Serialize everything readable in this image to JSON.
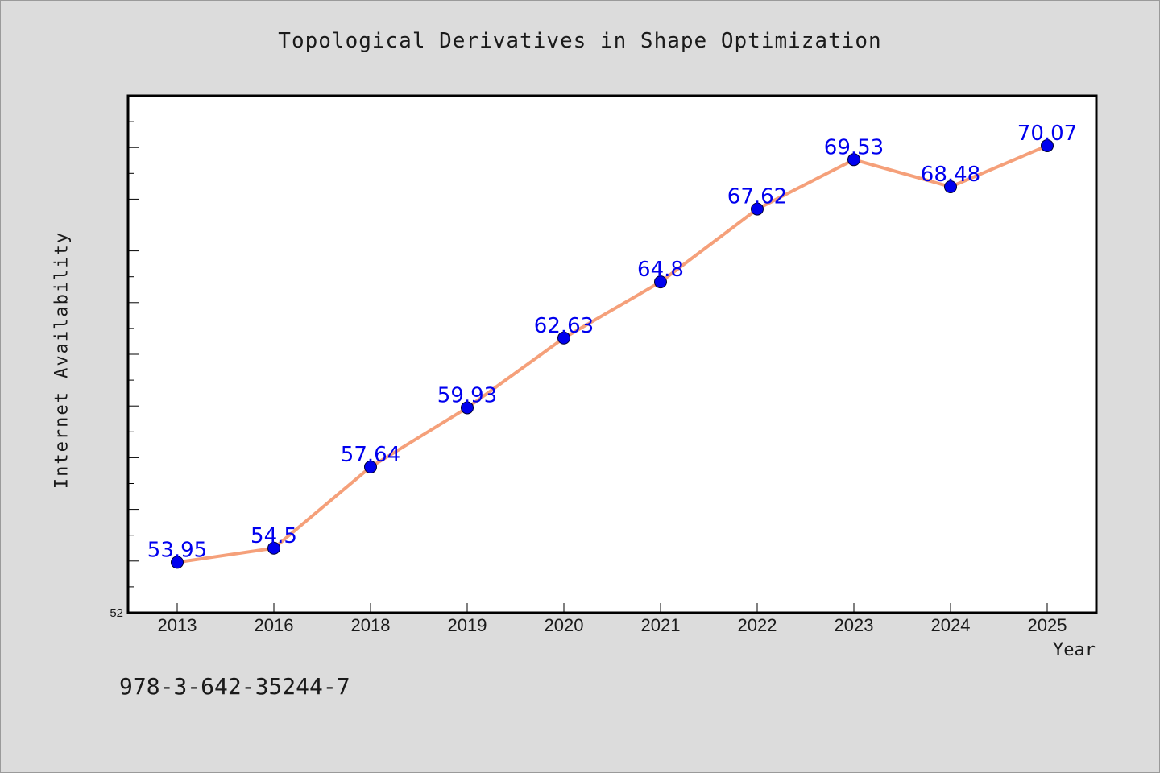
{
  "chart_data": {
    "type": "line",
    "title": "Topological Derivatives in Shape Optimization",
    "xlabel": "Year",
    "ylabel": "Internet Availability",
    "categories": [
      "2013",
      "2016",
      "2018",
      "2019",
      "2020",
      "2021",
      "2022",
      "2023",
      "2024",
      "2025"
    ],
    "series": [
      {
        "values": [
          53.95,
          54.5,
          57.64,
          59.93,
          62.63,
          64.8,
          67.62,
          69.53,
          68.48,
          70.07
        ],
        "labels": [
          "53.95",
          "54.5",
          "57.64",
          "59.93",
          "62.63",
          "64.8",
          "67.62",
          "69.53",
          "68.48",
          "70.07"
        ]
      }
    ],
    "ylim": [
      52,
      72
    ],
    "y_tick_label": "52",
    "grid": false,
    "line_color": "#f5a07a",
    "marker_color": "#0000ee",
    "label_color": "#0000ee",
    "background_color": "#dcdcdc",
    "plot_background_color": "#ffffff"
  },
  "footer": {
    "isbn": "978-3-642-35244-7"
  }
}
